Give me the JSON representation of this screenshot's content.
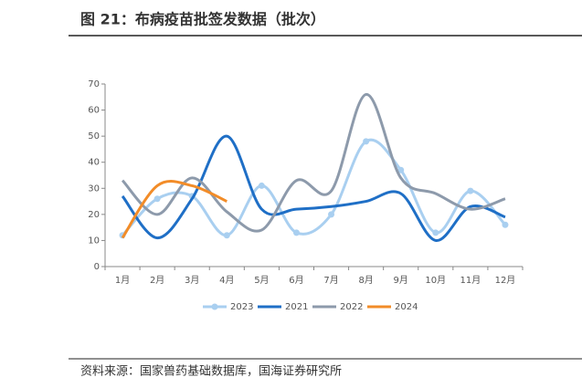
{
  "chart_data": {
    "type": "line",
    "title": "图 21：布病疫苗批签发数据（批次）",
    "source": "资料来源：国家兽药基础数据库，国海证券研究所",
    "categories": [
      "1月",
      "2月",
      "3月",
      "4月",
      "5月",
      "6月",
      "7月",
      "8月",
      "9月",
      "10月",
      "11月",
      "12月"
    ],
    "series": [
      {
        "name": "2023",
        "color": "#a9cff0",
        "markers": true,
        "values": [
          12,
          26,
          27,
          12,
          31,
          13,
          20,
          48,
          37,
          13,
          29,
          16
        ]
      },
      {
        "name": "2021",
        "color": "#1f6fc6",
        "values": [
          27,
          11,
          26,
          50,
          22,
          22,
          23,
          25,
          28,
          10,
          23,
          19
        ]
      },
      {
        "name": "2022",
        "color": "#8d9aab",
        "values": [
          33,
          20,
          34,
          21,
          14,
          33,
          29,
          66,
          34,
          28,
          22,
          26
        ]
      },
      {
        "name": "2024",
        "color": "#f28c28",
        "values": [
          11,
          31,
          31,
          25,
          null,
          null,
          null,
          null,
          null,
          null,
          null,
          null
        ]
      }
    ],
    "ylim": [
      0,
      70
    ],
    "yticks": [
      0,
      10,
      20,
      30,
      40,
      50,
      60,
      70
    ],
    "legend": "bottom"
  }
}
